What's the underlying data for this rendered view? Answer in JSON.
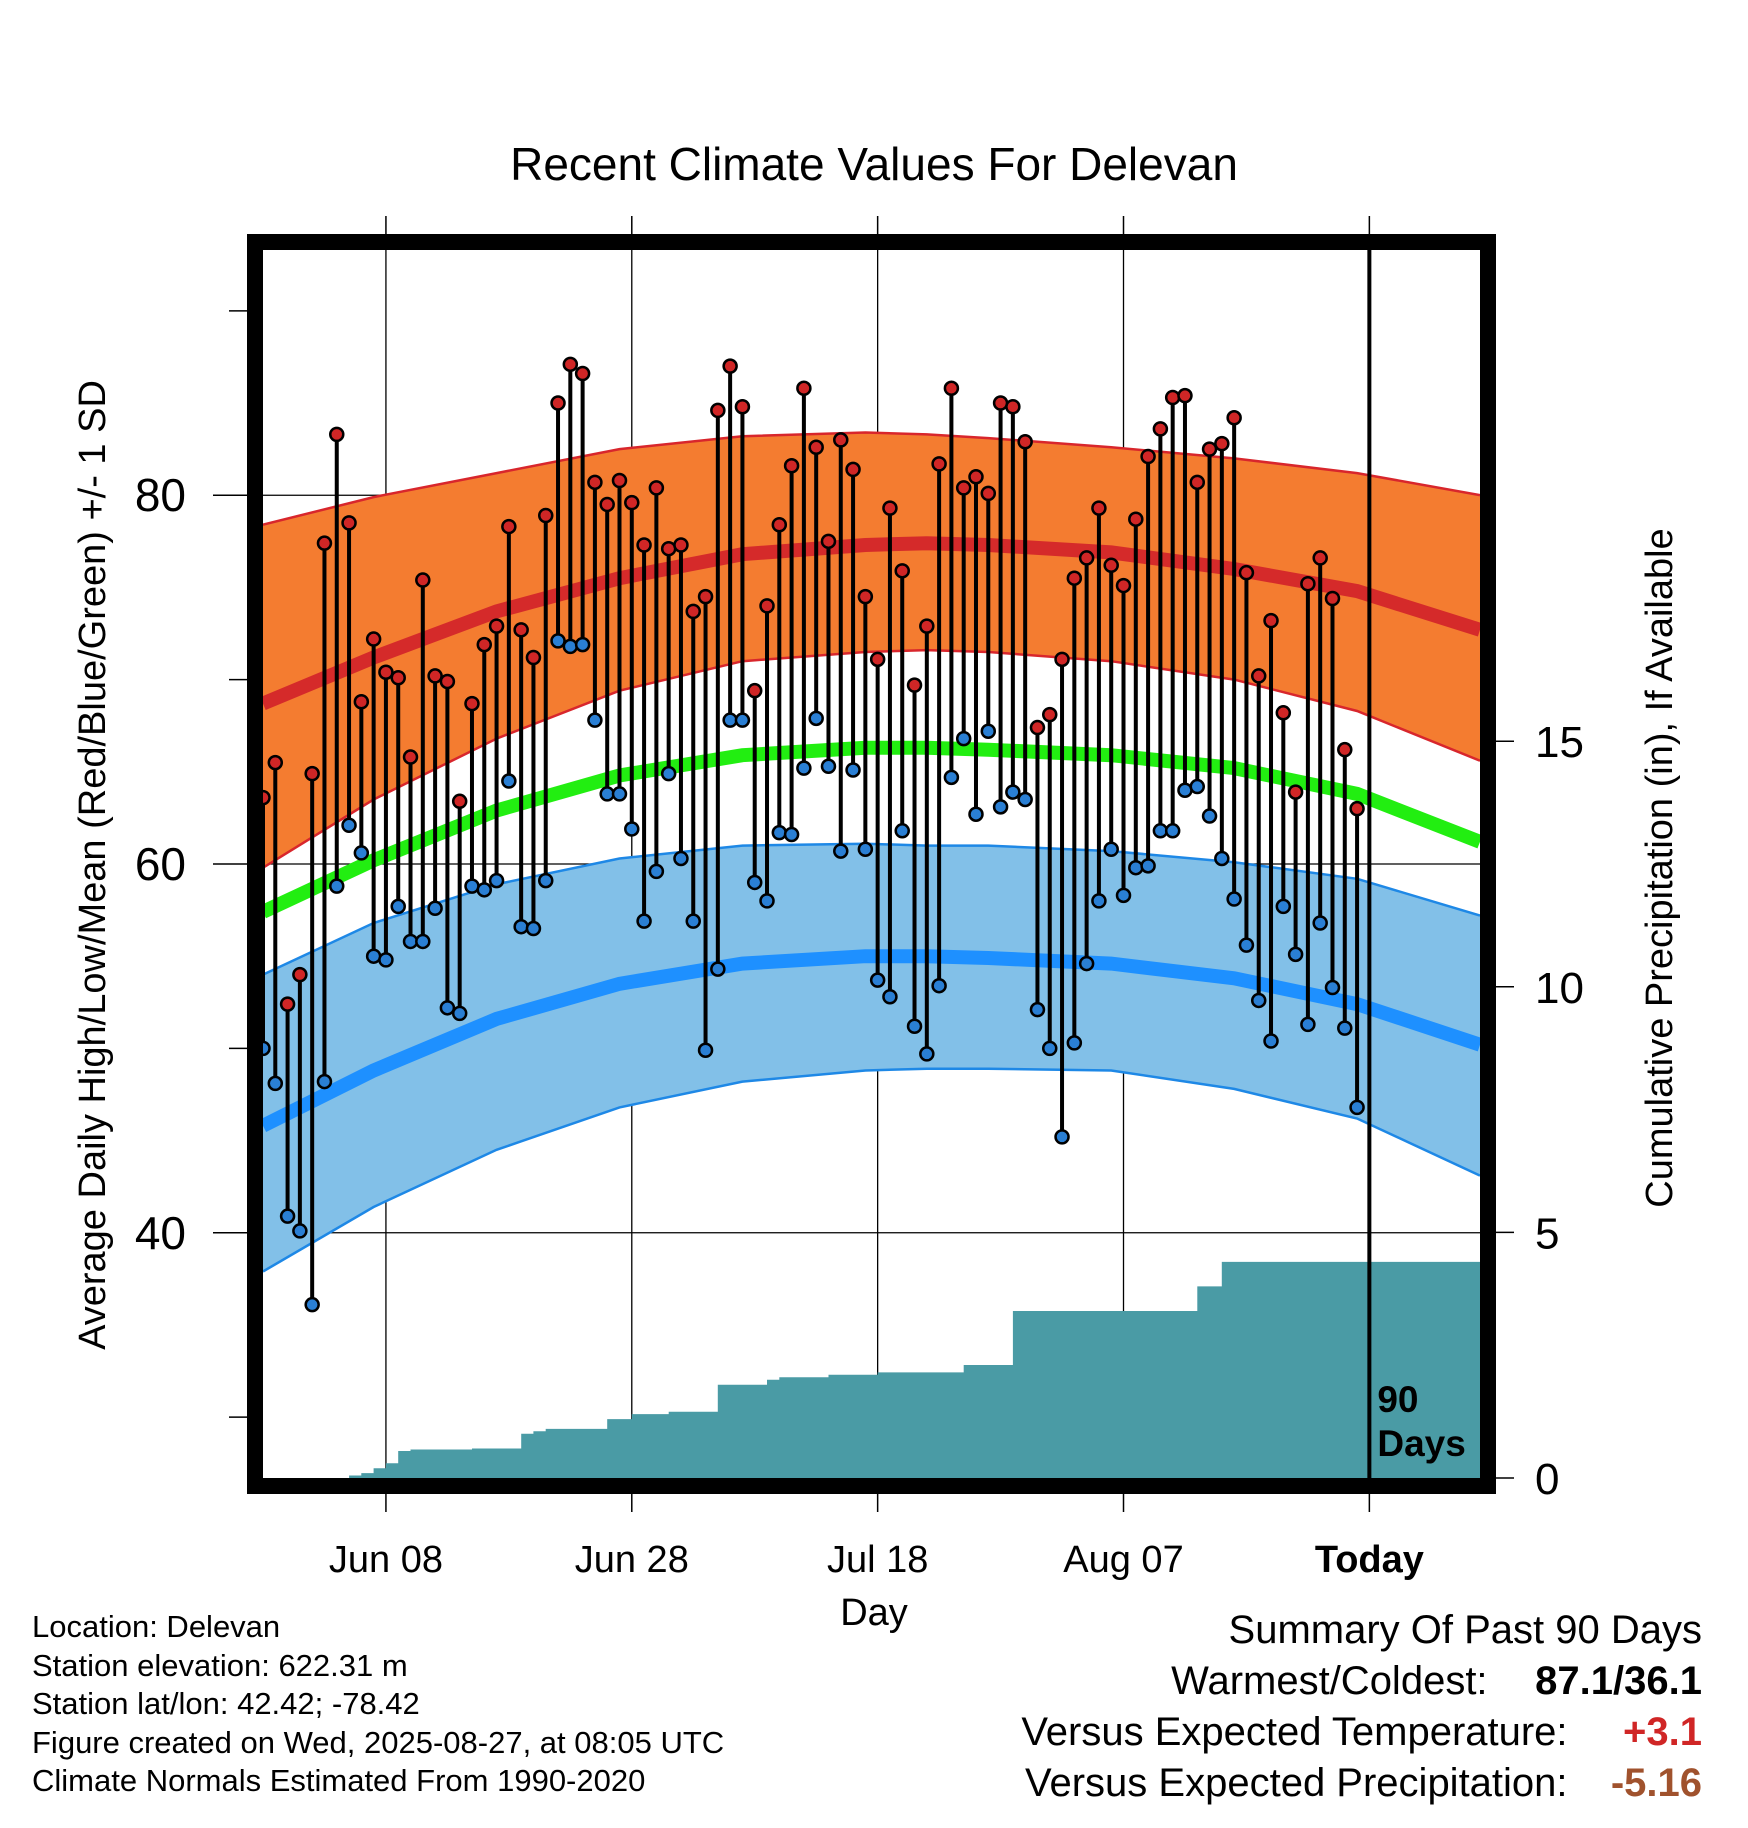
{
  "chart_data": {
    "type": "line",
    "title": "Recent Climate Values For Delevan",
    "xlabel": "Day",
    "ylabel_left": "Average Daily High/Low/Mean (Red/Blue/Green) +/- 1 SD",
    "ylabel_right": "Cumulative Precipitation (in), If Available",
    "x_ticks": [
      "Jun 08",
      "Jun 28",
      "Jul 18",
      "Aug 07",
      "Today"
    ],
    "x_tick_days": [
      11,
      31,
      51,
      71,
      91
    ],
    "x_range_days": [
      1,
      100
    ],
    "y_ticks_left": [
      "80",
      "60",
      "40"
    ],
    "y_tick_values_left": [
      80,
      60,
      40
    ],
    "y_range_left": [
      26.7,
      93.3
    ],
    "y_ticks_right": [
      "15",
      "10",
      "5",
      "0"
    ],
    "y_tick_values_right": [
      15,
      10,
      5,
      0
    ],
    "y_range_right": [
      0,
      25
    ],
    "grid": true,
    "today_marker_label": "90\nDays",
    "normals": {
      "days": [
        1,
        10,
        20,
        30,
        40,
        50,
        55,
        60,
        70,
        80,
        90,
        100
      ],
      "high_mean": [
        68.7,
        71.2,
        73.7,
        75.5,
        76.8,
        77.3,
        77.4,
        77.3,
        76.9,
        76.0,
        74.8,
        72.7
      ],
      "high_upper": [
        78.4,
        79.9,
        81.2,
        82.5,
        83.2,
        83.4,
        83.3,
        83.1,
        82.6,
        82.0,
        81.2,
        80.0
      ],
      "high_lower": [
        59.8,
        63.5,
        66.8,
        69.4,
        71.0,
        71.5,
        71.6,
        71.5,
        71.0,
        70.0,
        68.3,
        65.6
      ],
      "mean": [
        57.4,
        60.2,
        62.9,
        64.8,
        65.9,
        66.3,
        66.3,
        66.2,
        65.9,
        65.2,
        63.8,
        61.2
      ],
      "low_mean": [
        45.8,
        48.8,
        51.6,
        53.5,
        54.6,
        55.0,
        55.0,
        54.9,
        54.6,
        53.8,
        52.4,
        50.2
      ],
      "low_upper": [
        54.0,
        56.8,
        58.9,
        60.3,
        61.0,
        61.1,
        61.0,
        61.0,
        60.7,
        60.1,
        59.2,
        57.2
      ],
      "low_lower": [
        37.9,
        41.4,
        44.5,
        46.8,
        48.2,
        48.8,
        48.9,
        48.9,
        48.8,
        47.8,
        46.2,
        43.1
      ]
    },
    "observed": {
      "days": [
        1,
        2,
        3,
        4,
        5,
        6,
        7,
        8,
        9,
        10,
        11,
        12,
        13,
        14,
        15,
        16,
        17,
        18,
        19,
        20,
        21,
        22,
        23,
        24,
        25,
        26,
        27,
        28,
        29,
        30,
        31,
        32,
        33,
        34,
        35,
        36,
        37,
        38,
        39,
        40,
        41,
        42,
        43,
        44,
        45,
        46,
        47,
        48,
        49,
        50,
        51,
        52,
        53,
        54,
        55,
        56,
        57,
        58,
        59,
        60,
        61,
        62,
        63,
        64,
        65,
        66,
        67,
        68,
        69,
        70,
        71,
        72,
        73,
        74,
        75,
        76,
        77,
        78,
        79,
        80,
        81,
        82,
        83,
        84,
        85,
        86,
        87,
        88,
        89,
        90
      ],
      "high": [
        63.6,
        65.5,
        52.4,
        54.0,
        64.9,
        77.4,
        83.3,
        78.5,
        68.8,
        72.2,
        70.4,
        70.1,
        65.8,
        75.4,
        70.2,
        69.9,
        63.4,
        68.7,
        71.9,
        72.9,
        78.3,
        72.7,
        71.2,
        78.9,
        85.0,
        87.1,
        86.6,
        80.7,
        79.5,
        80.8,
        79.6,
        77.3,
        80.4,
        77.1,
        77.3,
        73.7,
        74.5,
        84.6,
        87.0,
        84.8,
        69.4,
        74.0,
        78.4,
        81.6,
        85.8,
        82.6,
        77.5,
        83.0,
        81.4,
        74.5,
        71.1,
        79.3,
        75.9,
        69.7,
        72.9,
        81.7,
        85.8,
        80.4,
        81.0,
        80.1,
        85.0,
        84.8,
        82.9,
        67.4,
        68.1,
        71.1,
        75.5,
        76.6,
        79.3,
        76.2,
        75.1,
        78.7,
        82.1,
        83.6,
        85.3,
        85.4,
        80.7,
        82.5,
        82.8,
        84.2,
        75.8,
        70.2,
        73.2,
        68.2,
        63.9,
        75.2,
        76.6,
        74.4,
        66.2,
        63.0
      ],
      "low": [
        50.0,
        48.1,
        40.9,
        40.1,
        36.1,
        48.2,
        58.8,
        62.1,
        60.6,
        55.0,
        54.8,
        57.7,
        55.8,
        55.8,
        57.6,
        52.2,
        51.9,
        58.8,
        58.6,
        59.1,
        64.5,
        56.6,
        56.5,
        59.1,
        72.1,
        71.8,
        71.9,
        67.8,
        63.8,
        63.8,
        61.9,
        56.9,
        59.6,
        64.9,
        60.3,
        56.9,
        49.9,
        54.3,
        67.8,
        67.8,
        59.0,
        58.0,
        61.7,
        61.6,
        65.2,
        67.9,
        65.3,
        60.7,
        65.1,
        60.8,
        53.7,
        52.8,
        61.8,
        51.2,
        49.7,
        53.4,
        64.7,
        66.8,
        62.7,
        67.2,
        63.1,
        63.9,
        63.5,
        52.1,
        50.0,
        45.2,
        50.3,
        54.6,
        58.0,
        60.8,
        58.3,
        59.8,
        59.9,
        61.8,
        61.8,
        64.0,
        64.2,
        62.6,
        60.3,
        58.1,
        55.6,
        52.6,
        50.4,
        57.7,
        55.1,
        51.3,
        56.8,
        53.3,
        51.1,
        46.8
      ]
    },
    "precip": {
      "days": [
        1,
        7,
        8,
        9,
        10,
        11,
        12,
        13,
        14,
        15,
        16,
        17,
        18,
        19,
        20,
        21,
        22,
        23,
        24,
        25,
        26,
        27,
        28,
        29,
        30,
        31,
        32,
        33,
        34,
        35,
        36,
        37,
        38,
        39,
        40,
        41,
        42,
        43,
        44,
        45,
        46,
        47,
        48,
        49,
        50,
        51,
        52,
        53,
        54,
        55,
        56,
        57,
        58,
        59,
        60,
        61,
        62,
        63,
        64,
        65,
        66,
        67,
        68,
        69,
        70,
        71,
        72,
        73,
        74,
        75,
        76,
        77,
        78,
        79,
        80,
        81,
        82,
        83,
        84,
        85,
        86,
        87,
        88,
        89,
        90,
        91,
        92,
        93,
        94,
        95,
        96,
        97,
        98,
        99,
        100
      ],
      "cumulative": [
        0,
        0,
        0.05,
        0.1,
        0.2,
        0.3,
        0.55,
        0.58,
        0.58,
        0.58,
        0.58,
        0.58,
        0.6,
        0.6,
        0.6,
        0.6,
        0.9,
        0.95,
        1.0,
        1.0,
        1.0,
        1.0,
        1.0,
        1.2,
        1.2,
        1.3,
        1.3,
        1.3,
        1.35,
        1.35,
        1.35,
        1.35,
        1.9,
        1.9,
        1.9,
        1.9,
        2.0,
        2.05,
        2.05,
        2.05,
        2.05,
        2.1,
        2.1,
        2.1,
        2.1,
        2.15,
        2.15,
        2.15,
        2.15,
        2.15,
        2.15,
        2.15,
        2.3,
        2.3,
        2.3,
        2.3,
        3.4,
        3.4,
        3.4,
        3.4,
        3.4,
        3.4,
        3.4,
        3.4,
        3.4,
        3.4,
        3.4,
        3.4,
        3.4,
        3.4,
        3.4,
        3.9,
        3.9,
        4.4,
        4.4,
        4.4,
        4.4,
        4.4,
        4.4,
        4.4,
        4.4,
        4.4,
        4.4,
        4.4,
        4.4,
        4.4,
        4.4,
        4.4,
        4.4,
        4.4,
        4.4,
        4.4,
        4.4,
        4.4,
        4.4
      ]
    },
    "colors": {
      "high_band": "#f47c30",
      "high_band_edge": "#d8262c",
      "high_mean_line": "#d52a2a",
      "mean_line": "#22ee11",
      "low_band": "#82c0e8",
      "low_band_edge": "#1e88e6",
      "low_mean_line": "#1e90ff",
      "precip_fill": "#4a9ba5",
      "high_dot": "#d02626",
      "low_dot": "#2a7fd4"
    }
  },
  "info": {
    "location": "Location: Delevan",
    "elevation": "Station elevation: 622.31 m",
    "latlon": "Station lat/lon: 42.42; -78.42",
    "created": "Figure created on Wed, 2025-08-27, at 08:05 UTC",
    "normals": "Climate Normals Estimated From 1990-2020"
  },
  "summary": {
    "title": "Summary Of Past 90 Days",
    "warm_cold_label": "Warmest/Coldest:",
    "warm_cold_value": "87.1/36.1",
    "temp_label": "Versus Expected Temperature:",
    "temp_value": "+3.1",
    "temp_color": "#d02626",
    "precip_label": "Versus Expected Precipitation:",
    "precip_value": "-5.16",
    "precip_color": "#a0522d"
  }
}
